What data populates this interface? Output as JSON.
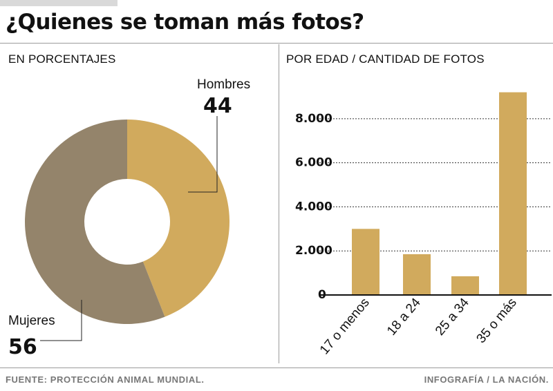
{
  "title": "¿Quienes se toman más fotos?",
  "footer": {
    "source": "FUENTE: PROTECCIÓN ANIMAL MUNDIAL.",
    "credit": "INFOGRAFÍA / LA NACIÓN."
  },
  "colors": {
    "gold": "#d1aa5d",
    "taupe": "#94846b",
    "grid": "#333333"
  },
  "chart_data": [
    {
      "type": "pie",
      "title": "EN PORCENTAJES",
      "donut": true,
      "slices": [
        {
          "label": "Hombres",
          "value": 44,
          "value_label": "44"
        },
        {
          "label": "Mujeres",
          "value": 56,
          "value_label": "56"
        }
      ]
    },
    {
      "type": "bar",
      "title": "POR EDAD / CANTIDAD DE FOTOS",
      "categories": [
        "17 o menos",
        "18 a 24",
        "25 a 34",
        "35 o más"
      ],
      "values": [
        3000,
        1850,
        850,
        9200
      ],
      "ylim": [
        0,
        9500
      ],
      "yticks": [
        0,
        2000,
        4000,
        6000,
        8000
      ],
      "ytick_labels": [
        "0",
        "2.000",
        "4.000",
        "6.000",
        "8.000"
      ],
      "grid": true
    }
  ]
}
